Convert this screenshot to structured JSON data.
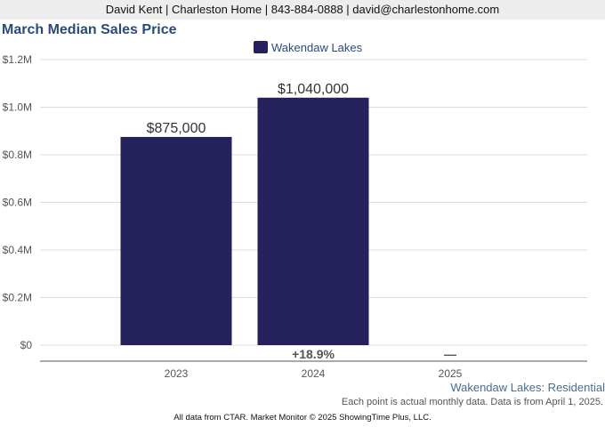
{
  "header": {
    "contact": "David Kent | Charleston Home | 843-884-0888 | david@charlestonhome.com"
  },
  "chart_data": {
    "type": "bar",
    "title": "March Median Sales Price",
    "categories": [
      "2023",
      "2024",
      "2025"
    ],
    "series": [
      {
        "name": "Wakendaw Lakes",
        "color": "#25215c",
        "values": [
          875000,
          1040000,
          null
        ],
        "value_labels": [
          "$875,000",
          "$1,040,000",
          ""
        ]
      }
    ],
    "change_labels": [
      "",
      "+18.9%",
      "—"
    ],
    "y_ticks": [
      {
        "value": 0,
        "label": "$0"
      },
      {
        "value": 200000,
        "label": "$0.2M"
      },
      {
        "value": 400000,
        "label": "$0.4M"
      },
      {
        "value": 600000,
        "label": "$0.6M"
      },
      {
        "value": 800000,
        "label": "$0.8M"
      },
      {
        "value": 1000000,
        "label": "$1.0M"
      },
      {
        "value": 1200000,
        "label": "$1.2M"
      }
    ],
    "ylim": [
      0,
      1200000
    ],
    "grid": true,
    "legend": "top-center",
    "subtitle": "Wakendaw Lakes: Residential"
  },
  "footer": {
    "note": "Each point is actual monthly data. Data is from April 1, 2025.",
    "credit": "All data from CTAR. Market Monitor © 2025 ShowingTime Plus, LLC."
  }
}
